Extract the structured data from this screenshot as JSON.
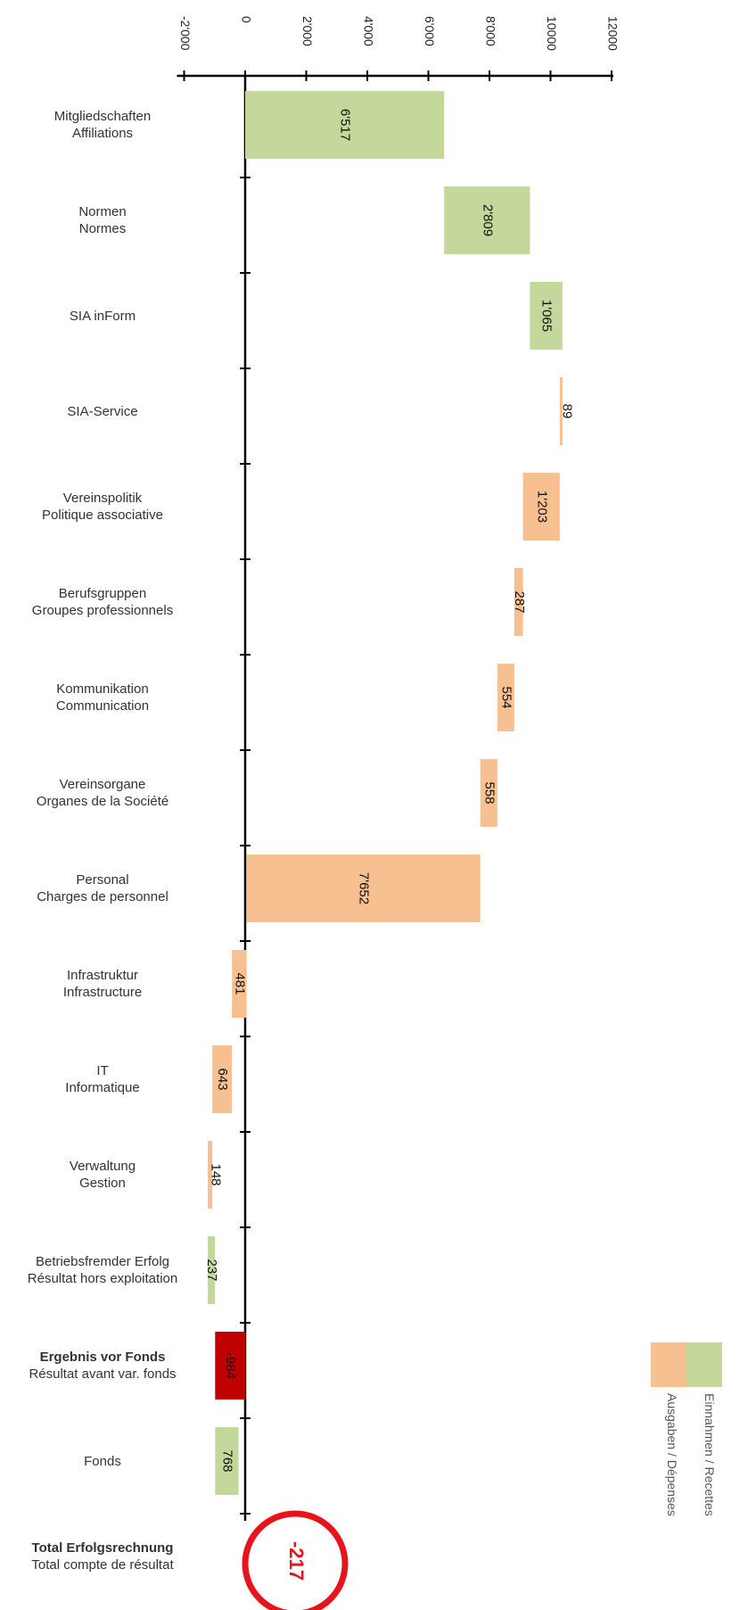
{
  "chart_data": {
    "type": "bar",
    "orientation": "horizontal-waterfall",
    "axis": {
      "min": -2000,
      "max": 12000,
      "ticks": [
        "-2'000",
        "0",
        "2'000",
        "4'000",
        "6'000",
        "8'000",
        "10000",
        "12000"
      ],
      "tick_values": [
        -2000,
        0,
        2000,
        4000,
        6000,
        8000,
        10000,
        12000
      ]
    },
    "colors": {
      "income": "#c4d89b",
      "expense": "#f7c090",
      "result": "#c00000",
      "total_circle": "#e8141c",
      "axis": "#000000"
    },
    "categories": [
      {
        "label_de": "Mitgliedschaften",
        "label_fr": "Affiliations",
        "type": "income",
        "start": 0,
        "end": 6517,
        "value_label": "6'517",
        "bold": false
      },
      {
        "label_de": "Normen",
        "label_fr": "Normes",
        "type": "income",
        "start": 6517,
        "end": 9326,
        "value_label": "2'809",
        "bold": false
      },
      {
        "label_de": "SIA inForm",
        "label_fr": "",
        "type": "income",
        "start": 9326,
        "end": 10391,
        "value_label": "1'065",
        "bold": false
      },
      {
        "label_de": "SIA-Service",
        "label_fr": "",
        "type": "expense",
        "start": 10391,
        "end": 10302,
        "value_label": "89",
        "bold": false
      },
      {
        "label_de": "Vereinspolitik",
        "label_fr": "Politique associative",
        "type": "expense",
        "start": 10302,
        "end": 9099,
        "value_label": "1'203",
        "bold": false
      },
      {
        "label_de": "Berufsgruppen",
        "label_fr": "Groupes professionnels",
        "type": "expense",
        "start": 9099,
        "end": 8812,
        "value_label": "287",
        "bold": false
      },
      {
        "label_de": "Kommunikation",
        "label_fr": "Communication",
        "type": "expense",
        "start": 8812,
        "end": 8258,
        "value_label": "554",
        "bold": false
      },
      {
        "label_de": "Vereinsorgane",
        "label_fr": "Organes de la Société",
        "type": "expense",
        "start": 8258,
        "end": 7700,
        "value_label": "558",
        "bold": false
      },
      {
        "label_de": "Personal",
        "label_fr": "Charges de personnel",
        "type": "expense",
        "start": 7700,
        "end": 48,
        "value_label": "7'652",
        "bold": false
      },
      {
        "label_de": "Infrastruktur",
        "label_fr": "Infrastructure",
        "type": "expense",
        "start": 48,
        "end": -433,
        "value_label": "481",
        "bold": false
      },
      {
        "label_de": "IT",
        "label_fr": "Informatique",
        "type": "expense",
        "start": -433,
        "end": -1076,
        "value_label": "643",
        "bold": false
      },
      {
        "label_de": "Verwaltung",
        "label_fr": "Gestion",
        "type": "expense",
        "start": -1076,
        "end": -1224,
        "value_label": "148",
        "bold": false
      },
      {
        "label_de": "Betriebsfremder Erfolg",
        "label_fr": "Résultat hors exploitation",
        "type": "income",
        "start": -1224,
        "end": -987,
        "value_label": "237",
        "bold": false
      },
      {
        "label_de": "Ergebnis vor Fonds",
        "label_fr": "Résultat avant var. fonds",
        "type": "result",
        "start": 0,
        "end": -984,
        "value_label": "-984",
        "bold": true
      },
      {
        "label_de": "Fonds",
        "label_fr": "",
        "type": "income",
        "start": -984,
        "end": -216,
        "value_label": "768",
        "bold": false
      },
      {
        "label_de": "Total Erfolgsrechnung",
        "label_fr": "Total compte de résultat",
        "type": "total",
        "start": 0,
        "end": -217,
        "value_label": "-217",
        "bold": true
      }
    ],
    "legend": [
      {
        "label": "Einnahmen / Recettes",
        "color": "#c4d89b"
      },
      {
        "label": "Ausgaben / Dépenses",
        "color": "#f7c090"
      }
    ]
  }
}
